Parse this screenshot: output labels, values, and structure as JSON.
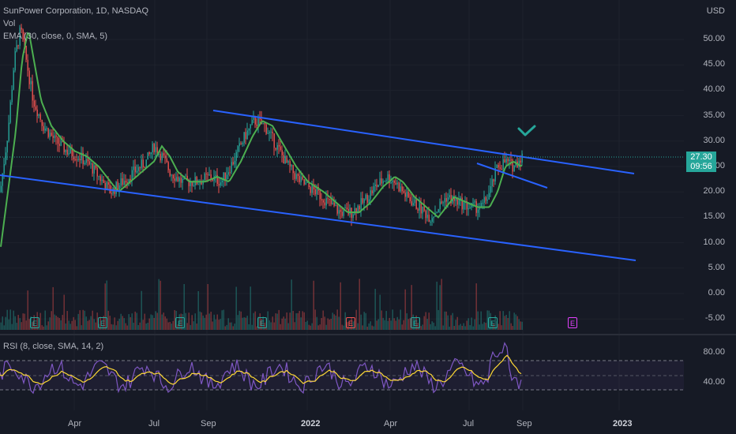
{
  "header": {
    "symbol": "SunPower Corporation, 1D, NASDAQ",
    "vol_label": "Vol",
    "ema_label": "EMA (30, close, 0, SMA, 5)",
    "currency": "USD"
  },
  "rsi": {
    "label": "RSI (8, close, SMA, 14, 2)",
    "ticks": [
      "80.00",
      "40.00"
    ]
  },
  "price_axis": [
    "50.00",
    "45.00",
    "40.00",
    "35.00",
    "30.00",
    "25.00",
    "20.00",
    "15.00",
    "10.00",
    "5.00",
    "0.00",
    "-5.00"
  ],
  "last_price": {
    "value": "27.30",
    "countdown": "09:56"
  },
  "x_axis": [
    {
      "label": "Apr",
      "bold": false
    },
    {
      "label": "Jul",
      "bold": false
    },
    {
      "label": "Sep",
      "bold": false
    },
    {
      "label": "2022",
      "bold": true
    },
    {
      "label": "Apr",
      "bold": false
    },
    {
      "label": "Jul",
      "bold": false
    },
    {
      "label": "Sep",
      "bold": false
    },
    {
      "label": "2023",
      "bold": true
    }
  ],
  "earnings_markers": [
    "E",
    "E",
    "E",
    "E",
    "E",
    "E",
    "E",
    "E"
  ],
  "colors": {
    "background": "#161a25",
    "up": "#26a69a",
    "down": "#ef5350",
    "ema": "#4caf50",
    "trend": "#2962ff",
    "rsi": "#7e57c2",
    "rsi_ma": "#fdd835",
    "future_earnings": "#e040fb"
  }
}
